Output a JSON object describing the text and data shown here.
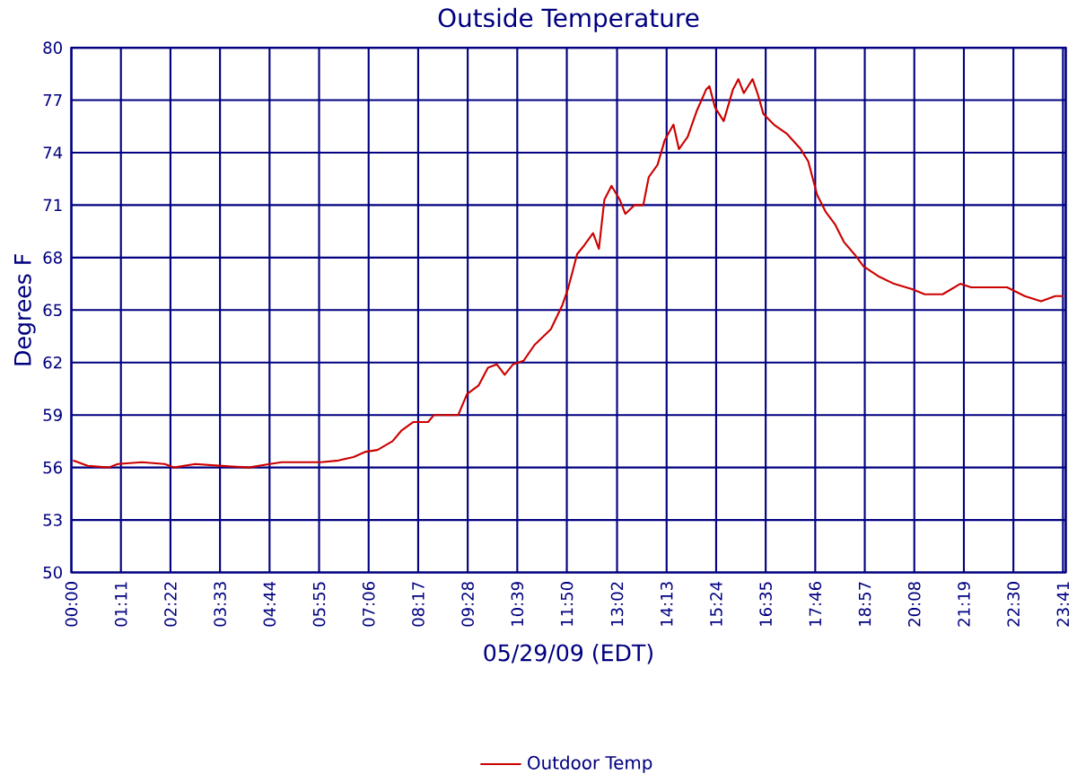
{
  "chart_data": {
    "type": "line",
    "title": "Outside Temperature",
    "xlabel": "05/29/09 (EDT)",
    "ylabel": "Degrees F",
    "x": [
      0.04,
      0.39,
      0.89,
      1.11,
      1.68,
      2.23,
      2.45,
      2.96,
      3.52,
      4.24,
      4.74,
      5.02,
      5.96,
      6.38,
      6.74,
      7.03,
      7.31,
      7.67,
      7.88,
      8.17,
      8.52,
      8.66,
      9.24,
      9.45,
      9.73,
      9.95,
      10.16,
      10.35,
      10.55,
      10.8,
      11.06,
      11.45,
      11.73,
      11.86,
      12.08,
      12.25,
      12.46,
      12.6,
      12.73,
      12.9,
      13.1,
      13.23,
      13.45,
      13.66,
      13.79,
      14.0,
      14.17,
      14.38,
      14.51,
      14.72,
      14.94,
      15.16,
      15.24,
      15.37,
      15.58,
      15.8,
      15.93,
      16.06,
      16.27,
      16.4,
      16.53,
      16.78,
      17.08,
      17.42,
      17.6,
      17.81,
      18.02,
      18.24,
      18.45,
      18.7,
      18.92,
      19.3,
      19.65,
      20.08,
      20.38,
      20.81,
      21.23,
      21.49,
      22.35,
      22.77,
      23.16,
      23.5,
      23.7
    ],
    "series": [
      {
        "name": "Outdoor Temp",
        "color": "#cc0000",
        "values": [
          56.4,
          56.1,
          56.0,
          56.2,
          56.3,
          56.2,
          56.0,
          56.2,
          56.1,
          56.0,
          56.2,
          56.3,
          56.3,
          56.4,
          56.6,
          56.9,
          57.0,
          57.5,
          58.1,
          58.6,
          58.6,
          59.0,
          59.0,
          60.2,
          60.7,
          61.7,
          61.9,
          61.3,
          61.9,
          62.1,
          63.0,
          63.9,
          65.3,
          66.2,
          68.2,
          68.7,
          69.4,
          68.5,
          71.3,
          72.1,
          71.3,
          70.5,
          71.0,
          71.0,
          72.6,
          73.3,
          74.7,
          75.6,
          74.2,
          74.9,
          76.4,
          77.6,
          77.8,
          76.6,
          75.8,
          77.6,
          78.2,
          77.4,
          78.2,
          77.3,
          76.2,
          75.6,
          75.1,
          74.2,
          73.5,
          71.6,
          70.6,
          69.9,
          68.9,
          68.2,
          67.5,
          66.9,
          66.5,
          66.2,
          65.9,
          65.9,
          66.5,
          66.3,
          66.3,
          65.8,
          65.5,
          65.8,
          65.8
        ]
      }
    ],
    "xlim": [
      0,
      23.75
    ],
    "ylim": [
      50,
      80
    ],
    "xticks": [
      {
        "value": 0,
        "label": "00:00"
      },
      {
        "value": 1.1833,
        "label": "01:11"
      },
      {
        "value": 2.3667,
        "label": "02:22"
      },
      {
        "value": 3.55,
        "label": "03:33"
      },
      {
        "value": 4.7333,
        "label": "04:44"
      },
      {
        "value": 5.9167,
        "label": "05:55"
      },
      {
        "value": 7.1,
        "label": "07:06"
      },
      {
        "value": 8.2833,
        "label": "08:17"
      },
      {
        "value": 9.4667,
        "label": "09:28"
      },
      {
        "value": 10.65,
        "label": "10:39"
      },
      {
        "value": 11.8333,
        "label": "11:50"
      },
      {
        "value": 13.0333,
        "label": "13:02"
      },
      {
        "value": 14.2167,
        "label": "14:13"
      },
      {
        "value": 15.4,
        "label": "15:24"
      },
      {
        "value": 16.5833,
        "label": "16:35"
      },
      {
        "value": 17.7667,
        "label": "17:46"
      },
      {
        "value": 18.95,
        "label": "18:57"
      },
      {
        "value": 20.1333,
        "label": "20:08"
      },
      {
        "value": 21.3167,
        "label": "21:19"
      },
      {
        "value": 22.5,
        "label": "22:30"
      },
      {
        "value": 23.6833,
        "label": "23:41"
      },
      {
        "value": 23.75,
        "label": null
      }
    ],
    "yticks": [
      50,
      53,
      56,
      59,
      62,
      65,
      68,
      71,
      74,
      77,
      80
    ],
    "grid": true,
    "legend": "bottom"
  }
}
